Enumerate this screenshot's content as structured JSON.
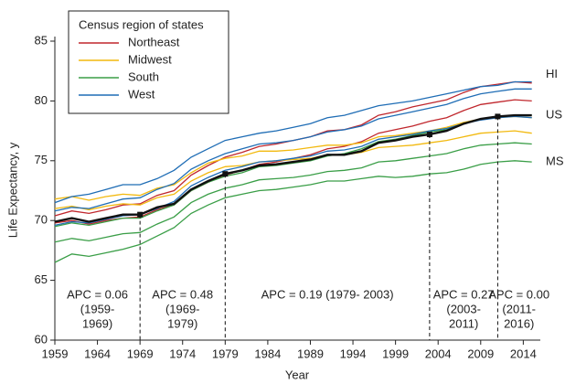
{
  "chart_data": {
    "type": "line",
    "x_label": "Year",
    "y_label": "Life Expectancy, y",
    "xlim": [
      1959,
      2016
    ],
    "xticks": [
      1959,
      1964,
      1969,
      1974,
      1979,
      1984,
      1989,
      1994,
      1999,
      2004,
      2009,
      2014
    ],
    "ylim": [
      60,
      85
    ],
    "yticks": [
      60,
      65,
      70,
      75,
      80,
      85
    ],
    "legend": {
      "title": "Census region of states",
      "entries": [
        {
          "name": "Northeast",
          "color": "#c0272d"
        },
        {
          "name": "Midwest",
          "color": "#f2b90f"
        },
        {
          "name": "South",
          "color": "#3a9e47"
        },
        {
          "name": "West",
          "color": "#1f6db5"
        }
      ]
    },
    "x": [
      1959,
      1961,
      1963,
      1965,
      1967,
      1969,
      1971,
      1973,
      1975,
      1977,
      1979,
      1981,
      1983,
      1985,
      1987,
      1989,
      1991,
      1993,
      1995,
      1997,
      1999,
      2001,
      2003,
      2005,
      2007,
      2009,
      2011,
      2013,
      2015
    ],
    "series": [
      {
        "color": "#c0272d",
        "values": [
          70.4,
          70.8,
          70.6,
          70.9,
          71.3,
          71.4,
          72.1,
          72.5,
          73.8,
          74.6,
          75.3,
          75.7,
          76.2,
          76.4,
          76.7,
          77.0,
          77.5,
          77.6,
          78.0,
          78.8,
          79.1,
          79.5,
          79.8,
          80.1,
          80.7,
          81.2,
          81.4,
          81.6,
          81.5
        ]
      },
      {
        "color": "#c0272d",
        "values": [
          69.8,
          70.0,
          69.7,
          70.0,
          70.2,
          70.3,
          70.9,
          71.3,
          72.5,
          73.2,
          73.8,
          74.2,
          74.7,
          74.9,
          75.2,
          75.5,
          76.0,
          76.2,
          76.6,
          77.3,
          77.6,
          77.9,
          78.3,
          78.6,
          79.2,
          79.7,
          79.9,
          80.1,
          80.0
        ]
      },
      {
        "color": "#f2b90f",
        "values": [
          71.8,
          72.0,
          71.7,
          72.0,
          72.2,
          72.1,
          72.7,
          73.0,
          74.0,
          74.8,
          75.2,
          75.4,
          75.8,
          75.8,
          75.9,
          76.1,
          76.3,
          76.3,
          76.5,
          77.0,
          77.1,
          77.3,
          77.5,
          77.8,
          78.2,
          78.5,
          78.6,
          78.7,
          78.6
        ]
      },
      {
        "color": "#f2b90f",
        "values": [
          71.0,
          71.2,
          70.9,
          71.2,
          71.4,
          71.3,
          71.9,
          72.2,
          73.3,
          74.0,
          74.5,
          74.6,
          74.9,
          75.0,
          75.1,
          75.2,
          75.5,
          75.5,
          75.7,
          76.1,
          76.2,
          76.3,
          76.5,
          76.7,
          77.0,
          77.3,
          77.4,
          77.5,
          77.3
        ]
      },
      {
        "color": "#3a9e47",
        "values": [
          68.2,
          68.5,
          68.3,
          68.6,
          68.9,
          69.0,
          69.7,
          70.3,
          71.5,
          72.2,
          72.7,
          73.0,
          73.4,
          73.5,
          73.6,
          73.8,
          74.1,
          74.2,
          74.4,
          74.9,
          75.0,
          75.2,
          75.4,
          75.6,
          76.0,
          76.3,
          76.4,
          76.5,
          76.4
        ]
      },
      {
        "color": "#3a9e47",
        "values": [
          69.5,
          69.8,
          69.6,
          69.9,
          70.2,
          70.2,
          70.8,
          71.3,
          72.5,
          73.2,
          73.7,
          74.0,
          74.5,
          74.6,
          74.8,
          75.0,
          75.4,
          75.6,
          76.0,
          76.6,
          76.8,
          77.1,
          77.4,
          77.6,
          78.1,
          78.5,
          78.7,
          78.8,
          78.8
        ]
      },
      {
        "color": "#1f6db5",
        "values": [
          70.8,
          71.1,
          71.0,
          71.4,
          71.8,
          71.9,
          72.6,
          73.1,
          74.3,
          75.0,
          75.6,
          76.0,
          76.4,
          76.5,
          76.7,
          77.0,
          77.4,
          77.6,
          77.9,
          78.5,
          78.8,
          79.1,
          79.4,
          79.7,
          80.2,
          80.6,
          80.8,
          81.0,
          81.0
        ]
      },
      {
        "color": "#1f6db5",
        "values": [
          69.6,
          69.9,
          69.8,
          70.1,
          70.4,
          70.5,
          71.0,
          71.6,
          72.9,
          73.6,
          74.2,
          74.5,
          74.9,
          75.0,
          75.2,
          75.4,
          75.8,
          75.9,
          76.2,
          76.8,
          77.0,
          77.2,
          77.5,
          77.7,
          78.1,
          78.4,
          78.6,
          78.7,
          78.6
        ]
      },
      {
        "name": "MS",
        "color": "#3a9e47",
        "values": [
          66.5,
          67.2,
          67.0,
          67.3,
          67.6,
          68.0,
          68.7,
          69.4,
          70.6,
          71.3,
          71.9,
          72.2,
          72.5,
          72.6,
          72.8,
          73.0,
          73.3,
          73.3,
          73.5,
          73.7,
          73.6,
          73.7,
          73.9,
          74.0,
          74.3,
          74.7,
          74.9,
          75.0,
          74.9
        ]
      },
      {
        "name": "HI",
        "color": "#1f6db5",
        "values": [
          71.5,
          72.0,
          72.2,
          72.6,
          73.0,
          73.0,
          73.5,
          74.2,
          75.3,
          76.0,
          76.7,
          77.0,
          77.3,
          77.5,
          77.8,
          78.1,
          78.6,
          78.8,
          79.2,
          79.6,
          79.8,
          80.0,
          80.3,
          80.6,
          80.9,
          81.2,
          81.3,
          81.6,
          81.6
        ]
      },
      {
        "name": "US",
        "color": "#111111",
        "values": [
          69.9,
          70.2,
          69.9,
          70.2,
          70.5,
          70.5,
          71.1,
          71.4,
          72.6,
          73.3,
          73.9,
          74.2,
          74.6,
          74.7,
          74.9,
          75.1,
          75.5,
          75.5,
          75.8,
          76.5,
          76.7,
          77.0,
          77.2,
          77.5,
          78.1,
          78.5,
          78.7,
          78.8,
          78.8
        ]
      }
    ],
    "joinpoints": [
      1969,
      1979,
      2003,
      2011
    ],
    "segments": [
      {
        "lines": [
          "APC = 0.06",
          "(1959-",
          "1969)"
        ]
      },
      {
        "lines": [
          "APC = 0.48",
          "(1969-",
          "1979)"
        ]
      },
      {
        "lines": [
          "APC = 0.19 (1979- 2003)"
        ]
      },
      {
        "lines": [
          "APC = 0.27",
          "(2003-",
          "2011)"
        ]
      },
      {
        "lines": [
          "APC = 0.00",
          "(2011-",
          "2016)"
        ]
      }
    ]
  }
}
